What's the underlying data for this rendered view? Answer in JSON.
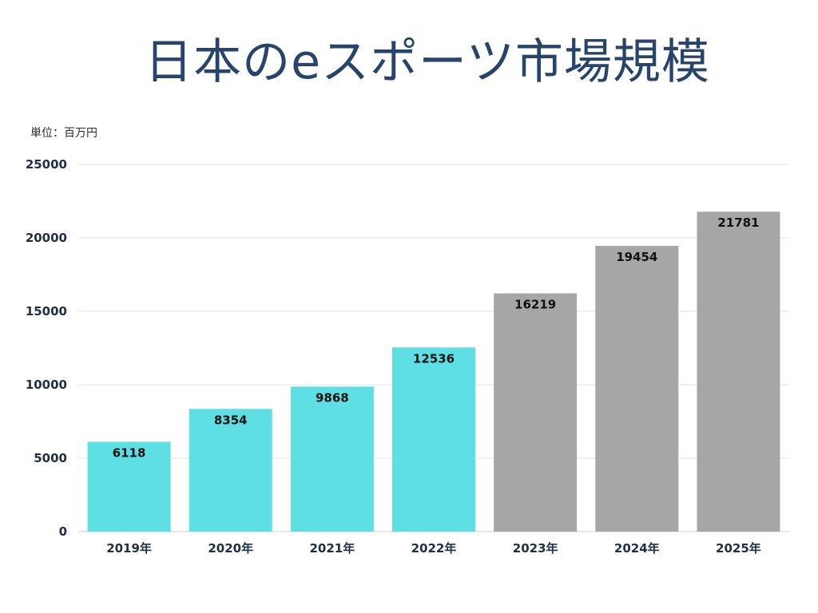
{
  "title": "日本のeスポーツ市場規模",
  "unit_label": "単位：百万円",
  "colors": {
    "actual": "#5ddfe4",
    "forecast": "#a6a6a6",
    "title": "#27456b",
    "grid": "#e3e3e3",
    "axis": "#1f2f45"
  },
  "chart_data": {
    "type": "bar",
    "title": "日本のeスポーツ市場規模",
    "xlabel": "",
    "ylabel": "単位：百万円",
    "ylim": [
      0,
      25000
    ],
    "yticks": [
      0,
      5000,
      10000,
      15000,
      20000,
      25000
    ],
    "grid": true,
    "categories": [
      "2019年",
      "2020年",
      "2021年",
      "2022年",
      "2023年",
      "2024年",
      "2025年"
    ],
    "values": [
      6118,
      8354,
      9868,
      12536,
      16219,
      19454,
      21781
    ],
    "bar_types": [
      "actual",
      "actual",
      "actual",
      "actual",
      "forecast",
      "forecast",
      "forecast"
    ]
  }
}
